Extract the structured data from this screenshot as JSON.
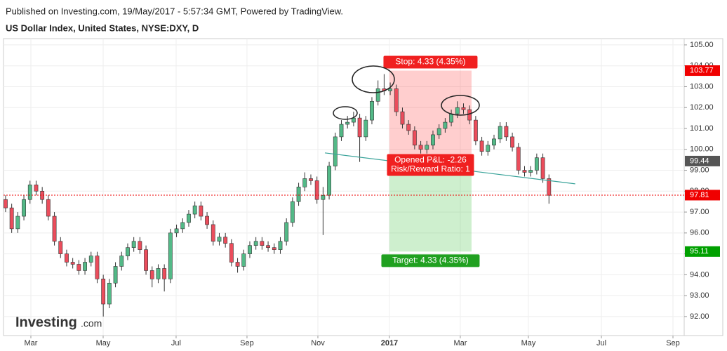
{
  "chart_data": {
    "type": "candlestick",
    "published": "Published on Investing.com, 19/May/2017 - 5:57:34 GMT, Powered by TradingView.",
    "title": "US Dollar Index, United States, NYSE:DXY, D",
    "logo": {
      "brand": "Investing",
      "suffix": ".com"
    },
    "up_color": "#53b987",
    "down_color": "#eb4d5c",
    "grid": true,
    "ylim": [
      91.09,
      105.3
    ],
    "yticks": [
      {
        "value": 92,
        "label": "92.00"
      },
      {
        "value": 93,
        "label": "93.00"
      },
      {
        "value": 94,
        "label": "94.00"
      },
      {
        "value": 95,
        "label": "95.00"
      },
      {
        "value": 96,
        "label": "96.00"
      },
      {
        "value": 97,
        "label": "97.00"
      },
      {
        "value": 98,
        "label": "98.00"
      },
      {
        "value": 99,
        "label": "99.00"
      },
      {
        "value": 100,
        "label": "100.00"
      },
      {
        "value": 101,
        "label": "101.00"
      },
      {
        "value": 102,
        "label": "102.00"
      },
      {
        "value": 103,
        "label": "103.00"
      },
      {
        "value": 104,
        "label": "104.00"
      },
      {
        "value": 105,
        "label": "105.00"
      }
    ],
    "xlim": [
      -0.34,
      111.15
    ],
    "xticks": [
      {
        "value": 4.14,
        "label": "Mar"
      },
      {
        "value": 15.98,
        "label": "May"
      },
      {
        "value": 27.93,
        "label": "Jul"
      },
      {
        "value": 39.54,
        "label": "Sep"
      },
      {
        "value": 51.15,
        "label": "Nov"
      },
      {
        "value": 62.87,
        "label": "2017"
      },
      {
        "value": 74.48,
        "label": "Mar"
      },
      {
        "value": 85.63,
        "label": "May"
      },
      {
        "value": 97.59,
        "label": "Jul"
      },
      {
        "value": 109.31,
        "label": "Sep"
      }
    ],
    "ohlc": [
      [
        97.6,
        97.8,
        97.0,
        97.2
      ],
      [
        97.2,
        97.4,
        96.0,
        96.2
      ],
      [
        96.2,
        97.0,
        96.0,
        96.8
      ],
      [
        96.8,
        97.8,
        96.6,
        97.6
      ],
      [
        97.6,
        98.5,
        97.4,
        98.3
      ],
      [
        98.3,
        98.5,
        97.8,
        98.0
      ],
      [
        98.0,
        98.2,
        97.4,
        97.6
      ],
      [
        97.6,
        97.8,
        96.6,
        96.8
      ],
      [
        96.8,
        97.0,
        95.4,
        95.6
      ],
      [
        95.6,
        95.8,
        94.8,
        95.0
      ],
      [
        95.0,
        95.2,
        94.4,
        94.6
      ],
      [
        94.6,
        94.8,
        94.3,
        94.5
      ],
      [
        94.5,
        94.7,
        94.0,
        94.2
      ],
      [
        94.2,
        94.8,
        94.0,
        94.6
      ],
      [
        94.6,
        95.1,
        94.4,
        94.9
      ],
      [
        94.9,
        95.1,
        93.6,
        93.8
      ],
      [
        93.8,
        94.0,
        92.0,
        92.6
      ],
      [
        92.6,
        93.8,
        92.4,
        93.6
      ],
      [
        93.6,
        94.6,
        93.4,
        94.4
      ],
      [
        94.4,
        95.1,
        94.2,
        94.9
      ],
      [
        94.9,
        95.5,
        94.7,
        95.3
      ],
      [
        95.3,
        95.8,
        95.1,
        95.6
      ],
      [
        95.6,
        95.8,
        95.0,
        95.2
      ],
      [
        95.2,
        95.4,
        94.0,
        94.2
      ],
      [
        94.2,
        94.4,
        93.4,
        93.8
      ],
      [
        93.8,
        94.5,
        93.6,
        94.3
      ],
      [
        94.3,
        94.5,
        93.2,
        93.8
      ],
      [
        93.8,
        96.2,
        93.6,
        96.0
      ],
      [
        96.0,
        96.4,
        95.8,
        96.2
      ],
      [
        96.2,
        96.7,
        96.0,
        96.5
      ],
      [
        96.5,
        97.1,
        96.3,
        96.9
      ],
      [
        96.9,
        97.5,
        96.7,
        97.3
      ],
      [
        97.3,
        97.5,
        96.6,
        96.8
      ],
      [
        96.8,
        97.0,
        96.2,
        96.4
      ],
      [
        96.4,
        96.6,
        95.4,
        95.6
      ],
      [
        95.6,
        96.0,
        95.4,
        95.8
      ],
      [
        95.8,
        96.0,
        95.3,
        95.5
      ],
      [
        95.5,
        95.7,
        94.4,
        94.6
      ],
      [
        94.6,
        94.8,
        94.1,
        94.4
      ],
      [
        94.4,
        95.2,
        94.2,
        95.0
      ],
      [
        95.0,
        95.6,
        94.8,
        95.4
      ],
      [
        95.4,
        95.8,
        95.2,
        95.6
      ],
      [
        95.6,
        95.8,
        95.2,
        95.4
      ],
      [
        95.4,
        95.6,
        95.1,
        95.3
      ],
      [
        95.3,
        95.5,
        95.0,
        95.2
      ],
      [
        95.2,
        95.8,
        95.0,
        95.6
      ],
      [
        95.6,
        96.7,
        95.4,
        96.5
      ],
      [
        96.5,
        97.7,
        96.3,
        97.5
      ],
      [
        97.5,
        98.4,
        97.3,
        98.2
      ],
      [
        98.2,
        98.9,
        98.0,
        98.6
      ],
      [
        98.6,
        98.8,
        98.3,
        98.5
      ],
      [
        98.5,
        98.7,
        97.4,
        97.6
      ],
      [
        97.6,
        98.2,
        95.9,
        97.8
      ],
      [
        97.8,
        99.4,
        97.6,
        99.2
      ],
      [
        99.2,
        100.8,
        99.0,
        100.6
      ],
      [
        100.6,
        101.4,
        100.4,
        101.2
      ],
      [
        101.2,
        101.6,
        101.0,
        101.3
      ],
      [
        101.3,
        101.8,
        101.1,
        101.5
      ],
      [
        101.5,
        101.7,
        99.4,
        100.6
      ],
      [
        100.6,
        101.6,
        100.4,
        101.4
      ],
      [
        101.4,
        102.5,
        101.2,
        102.3
      ],
      [
        102.3,
        103.3,
        102.1,
        102.9
      ],
      [
        102.9,
        103.6,
        102.6,
        102.8
      ],
      [
        102.8,
        103.2,
        102.6,
        102.9
      ],
      [
        102.9,
        103.1,
        101.6,
        101.8
      ],
      [
        101.8,
        102.0,
        101.0,
        101.2
      ],
      [
        101.2,
        101.4,
        100.7,
        100.9
      ],
      [
        100.9,
        101.1,
        100.0,
        100.2
      ],
      [
        100.2,
        100.4,
        99.8,
        100.0
      ],
      [
        100.0,
        100.4,
        99.8,
        100.2
      ],
      [
        100.2,
        100.9,
        100.0,
        100.7
      ],
      [
        100.7,
        101.2,
        100.5,
        101.0
      ],
      [
        101.0,
        101.5,
        100.8,
        101.3
      ],
      [
        101.3,
        101.9,
        101.1,
        101.7
      ],
      [
        101.7,
        102.3,
        101.5,
        102.0
      ],
      [
        102.0,
        102.2,
        101.7,
        101.9
      ],
      [
        101.9,
        102.1,
        101.2,
        101.4
      ],
      [
        101.4,
        101.6,
        100.2,
        100.4
      ],
      [
        100.4,
        100.6,
        99.7,
        99.9
      ],
      [
        99.9,
        100.4,
        99.7,
        100.2
      ],
      [
        100.2,
        100.7,
        100.0,
        100.5
      ],
      [
        100.5,
        101.3,
        100.3,
        101.1
      ],
      [
        101.1,
        101.3,
        100.4,
        100.6
      ],
      [
        100.6,
        100.8,
        99.9,
        100.1
      ],
      [
        100.1,
        100.3,
        98.8,
        99.0
      ],
      [
        99.0,
        99.2,
        98.7,
        98.9
      ],
      [
        98.9,
        99.2,
        98.7,
        99.0
      ],
      [
        99.0,
        99.8,
        98.8,
        99.6
      ],
      [
        99.6,
        99.8,
        98.4,
        98.6
      ],
      [
        98.6,
        98.8,
        97.4,
        97.8
      ]
    ],
    "position": {
      "x": [
        62.87,
        76.32
      ],
      "stop": 103.77,
      "entry": 99.44,
      "target": 95.11,
      "stop_label": "Stop: 4.33 (4.35%)",
      "target_label": "Target: 4.33 (4.35%)",
      "pnl_label": "Opened P&L: -2.26",
      "ratio_label": "Risk/Reward Ratio: 1"
    },
    "trendline": {
      "x": [
        52.3,
        93.3
      ],
      "y": [
        99.83,
        98.35
      ],
      "color": "#3aa39a"
    },
    "last_price": 97.81,
    "price_tags": [
      {
        "value": 103.77,
        "color": "#f00000"
      },
      {
        "value": 99.44,
        "color": "#555555"
      },
      {
        "value": 97.81,
        "color": "#f00000"
      },
      {
        "value": 95.11,
        "color": "#00a000"
      }
    ]
  }
}
